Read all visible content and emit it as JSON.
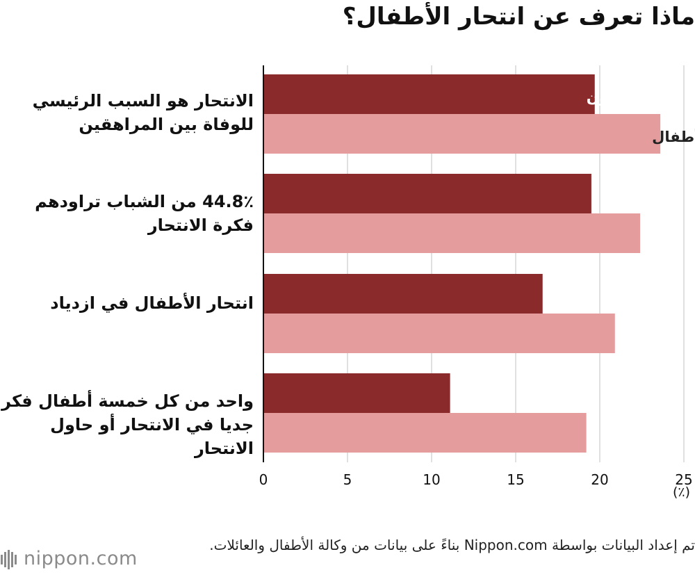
{
  "title": "ماذا تعرف عن انتحار الأطفال؟",
  "unit_label": "(٪)",
  "source": "تم إعداد البيانات بواسطة Nippon.com بناءً على بيانات من وكالة الأطفال والعائلات.",
  "brand": {
    "logo_text": "nippon.com"
  },
  "colors": {
    "adults": "#8b2a2b",
    "children": "#e59c9d",
    "grid": "#cccccc",
    "axis": "#111111"
  },
  "chart_data": {
    "type": "bar",
    "orientation": "horizontal",
    "categories": [
      "الانتحار هو السبب الرئيسي\nللوفاة بين المراهقين",
      "44.8٪ من الشباب تراودهم\nفكرة الانتحار",
      "انتحار الأطفال في ازدياد",
      "واحد من كل خمسة أطفال فكر\nجديا في الانتحار أو حاول الانتحار"
    ],
    "series": [
      {
        "name": "البالغون",
        "color": "#8b2a2b",
        "values": [
          19.7,
          19.5,
          16.6,
          11.1
        ]
      },
      {
        "name": "الأطفال",
        "color": "#e59c9d",
        "values": [
          23.6,
          22.4,
          20.9,
          19.2
        ]
      }
    ],
    "xlim": [
      0,
      25
    ],
    "xticks": [
      "0",
      "5",
      "10",
      "15",
      "20",
      "25"
    ],
    "grid": true,
    "legend": "inline labels on first category bars"
  }
}
